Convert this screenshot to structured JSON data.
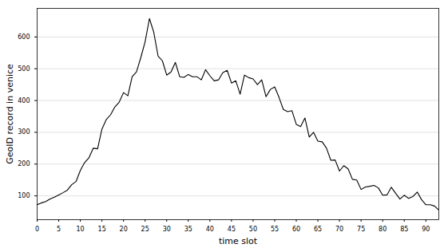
{
  "chart_data": {
    "type": "line",
    "x_label": "time slot",
    "y_label": "GeoID record in venice",
    "x": [
      0,
      1,
      2,
      3,
      4,
      5,
      6,
      7,
      8,
      9,
      10,
      11,
      12,
      13,
      14,
      15,
      16,
      17,
      18,
      19,
      20,
      21,
      22,
      23,
      24,
      25,
      26,
      27,
      28,
      29,
      30,
      31,
      32,
      33,
      34,
      35,
      36,
      37,
      38,
      39,
      40,
      41,
      42,
      43,
      44,
      45,
      46,
      47,
      48,
      49,
      50,
      51,
      52,
      53,
      54,
      55,
      56,
      57,
      58,
      59,
      60,
      61,
      62,
      63,
      64,
      65,
      66,
      67,
      68,
      69,
      70,
      71,
      72,
      73,
      74,
      75,
      76,
      77,
      78,
      79,
      80,
      81,
      82,
      83,
      84,
      85,
      86,
      87,
      88,
      89,
      90,
      91,
      92,
      93
    ],
    "values": [
      72,
      78,
      82,
      90,
      96,
      103,
      110,
      118,
      135,
      145,
      180,
      205,
      220,
      250,
      248,
      310,
      340,
      355,
      380,
      395,
      425,
      415,
      475,
      490,
      535,
      585,
      658,
      615,
      540,
      525,
      480,
      490,
      520,
      475,
      473,
      482,
      475,
      475,
      465,
      497,
      478,
      462,
      465,
      488,
      495,
      455,
      462,
      420,
      480,
      472,
      468,
      450,
      465,
      412,
      435,
      443,
      410,
      372,
      365,
      368,
      325,
      318,
      345,
      285,
      300,
      272,
      270,
      250,
      212,
      213,
      178,
      195,
      185,
      152,
      150,
      120,
      128,
      130,
      133,
      125,
      102,
      103,
      127,
      108,
      90,
      102,
      92,
      98,
      112,
      88,
      72,
      72,
      68,
      55
    ],
    "color": "#000000",
    "xlim": [
      0,
      93
    ],
    "ylim": [
      25,
      690
    ],
    "xticks": [
      0,
      5,
      10,
      15,
      20,
      25,
      30,
      35,
      40,
      45,
      50,
      55,
      60,
      65,
      70,
      75,
      80,
      85,
      90
    ],
    "yticks": [
      100,
      200,
      300,
      400,
      500,
      600
    ],
    "grid": true
  }
}
